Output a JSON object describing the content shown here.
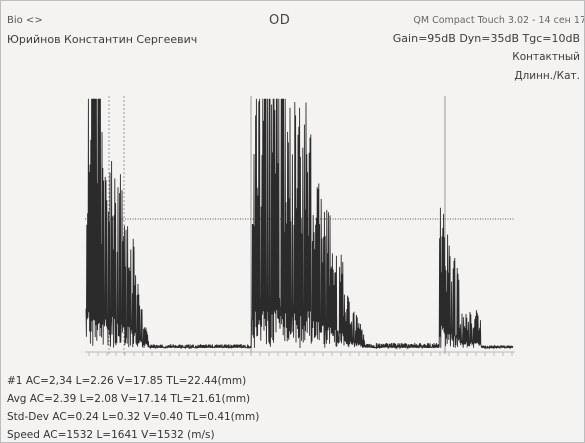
{
  "header": {
    "bio_label": "Bio <>",
    "patient_name": "Юрийнов Константин Сергеевич",
    "eye": "OD",
    "device_info": "QM Compact Touch 3.02 - 14 сен 17",
    "settings": "Gain=95dB Dyn=35dB Tgc=10dB",
    "probe_mode": "Контактный",
    "eye_type": "Длинн./Кат."
  },
  "scan": {
    "type": "A-scan echogram",
    "trace_color": "#2b2b2b",
    "threshold_color": "#5a5a5a",
    "gate_color": "#9a9a9a",
    "baseline_color": "#bbbbbb"
  },
  "measurements": {
    "m1": "#1 AC=2,34 L=2.26 V=17.85 TL=22.44(mm)",
    "avg": "Avg AC=2.39 L=2.08 V=17.14 TL=21.61(mm)",
    "std": "Std-Dev AC=0.24 L=0.32 V=0.40 TL=0.41(mm)",
    "speed": "Speed AC=1532 L=1641 V=1532 (m/s)"
  }
}
